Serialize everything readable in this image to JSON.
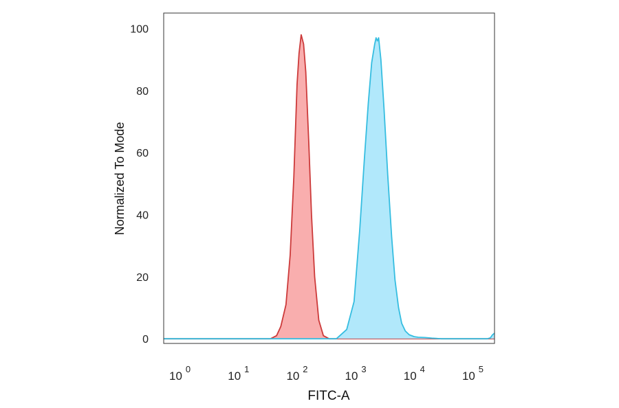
{
  "chart_data": {
    "type": "area",
    "xlabel": "FITC-A",
    "ylabel": "Normalized To Mode",
    "xscale": "log",
    "xlim": [
      0.45,
      200000
    ],
    "ylim": [
      -1.5,
      105
    ],
    "grid": false,
    "x_ticks": [
      {
        "base": "10",
        "exp": "0",
        "value": 1
      },
      {
        "base": "10",
        "exp": "1",
        "value": 10
      },
      {
        "base": "10",
        "exp": "2",
        "value": 100
      },
      {
        "base": "10",
        "exp": "3",
        "value": 1000
      },
      {
        "base": "10",
        "exp": "4",
        "value": 10000
      },
      {
        "base": "10",
        "exp": "5",
        "value": 100000
      }
    ],
    "y_ticks": [
      {
        "label": "0",
        "value": 0
      },
      {
        "label": "20",
        "value": 20
      },
      {
        "label": "40",
        "value": 40
      },
      {
        "label": "60",
        "value": 60
      },
      {
        "label": "80",
        "value": 80
      },
      {
        "label": "100",
        "value": 100
      }
    ],
    "series": [
      {
        "fill": "#f8a5a5",
        "stroke": "#cc3a3a",
        "x": [
          0.45,
          30,
          38,
          45,
          55,
          65,
          75,
          85,
          92,
          100,
          110,
          120,
          135,
          150,
          170,
          200,
          240,
          300,
          200000
        ],
        "y": [
          0,
          0,
          1,
          4,
          11,
          27,
          52,
          82,
          92,
          98,
          95,
          86,
          63,
          40,
          20,
          6,
          1,
          0,
          0
        ]
      },
      {
        "fill": "#a8e6fb",
        "stroke": "#35bde0",
        "x": [
          0.45,
          400,
          600,
          800,
          1000,
          1200,
          1400,
          1600,
          1800,
          1900,
          2000,
          2100,
          2300,
          2600,
          3000,
          3500,
          4000,
          4600,
          5200,
          6000,
          7000,
          8500,
          10000,
          13000,
          17000,
          25000,
          100000,
          150000,
          170000,
          185000,
          200000
        ],
        "y": [
          0,
          0,
          3,
          12,
          35,
          58,
          76,
          89,
          95,
          97,
          96,
          97,
          90,
          74,
          53,
          33,
          19,
          10,
          5,
          2.5,
          1.3,
          0.7,
          0.5,
          0.4,
          0.2,
          0,
          0,
          0,
          0.3,
          1.3,
          1.8
        ]
      }
    ]
  }
}
